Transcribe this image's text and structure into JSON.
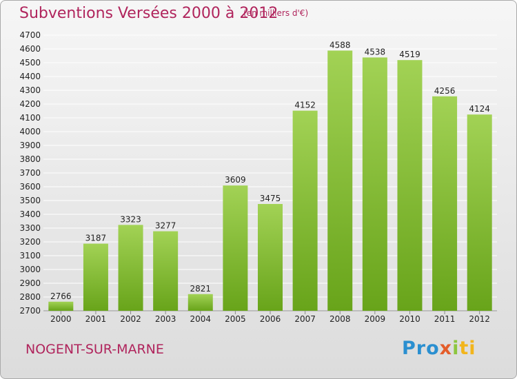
{
  "header": {
    "title": "Subventions Versées 2000 à 2012",
    "unit": "(en milliers d'€)"
  },
  "footer": {
    "city": "NOGENT-SUR-MARNE",
    "logo_parts": [
      "Pro",
      "x",
      "i",
      "ti"
    ]
  },
  "colors": {
    "title": "#b0245c",
    "bar_light": "#a2d255",
    "bar_dark": "#68a41a",
    "grid": "#ffffff"
  },
  "chart_data": {
    "type": "bar",
    "title": "Subventions Versées 2000 à 2012",
    "subtitle": "(en milliers d'€)",
    "categories": [
      "2000",
      "2001",
      "2002",
      "2003",
      "2004",
      "2005",
      "2006",
      "2007",
      "2008",
      "2009",
      "2010",
      "2011",
      "2012"
    ],
    "values": [
      2766,
      3187,
      3323,
      3277,
      2821,
      3609,
      3475,
      4152,
      4588,
      4538,
      4519,
      4256,
      4124
    ],
    "ylim": [
      2700,
      4700
    ],
    "yticks": [
      2700,
      2800,
      2900,
      3000,
      3100,
      3200,
      3300,
      3400,
      3500,
      3600,
      3700,
      3800,
      3900,
      4000,
      4100,
      4200,
      4300,
      4400,
      4500,
      4600,
      4700
    ],
    "grid": true,
    "xlabel": "",
    "ylabel": ""
  }
}
